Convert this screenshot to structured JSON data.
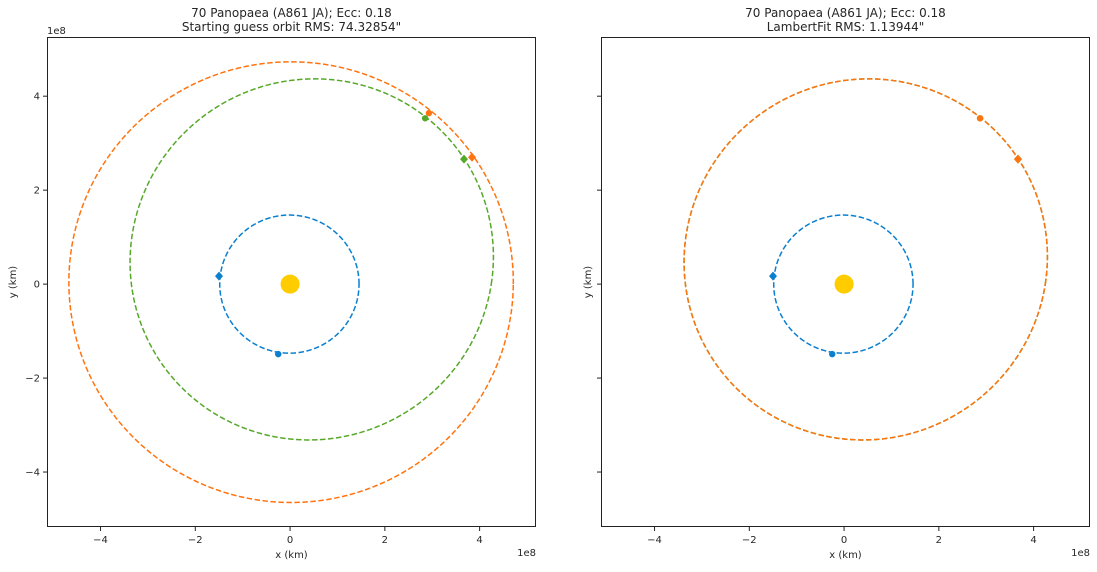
{
  "chart_data": [
    {
      "type": "line",
      "title": [
        "70 Panopaea (A861 JA); Ecc: 0.18",
        "Starting guess orbit RMS: 74.32854\""
      ],
      "xlabel": "x (km)",
      "ylabel": "y (km)",
      "offset_label": "1e8",
      "show_yticklabels": true,
      "xlim": [
        -5.13,
        5.19
      ],
      "ylim": [
        -5.17,
        5.26
      ],
      "xticks": [
        -4,
        -2,
        0,
        2,
        4
      ],
      "yticks": [
        -4,
        -2,
        0,
        2,
        4
      ],
      "tick_labels": [
        "−4",
        "−2",
        "0",
        "2",
        "4"
      ],
      "sun": {
        "x": 0,
        "y": 0,
        "color": "#ffcc00"
      },
      "orbits": [
        {
          "color": "#0a7fd0",
          "a": 1.47,
          "e": 0.01,
          "omega_deg": 0
        },
        {
          "color": "#56a829",
          "a": 3.87,
          "e": 0.18,
          "omega_deg": 229
        },
        {
          "color": "#ff7410",
          "a": 4.69,
          "e": 0.01,
          "omega_deg": 243
        }
      ],
      "points": [
        {
          "color": "#0a7fd0",
          "x": -1.5,
          "y": 0.17,
          "shape": "diamond"
        },
        {
          "color": "#0a7fd0",
          "x": -0.25,
          "y": -1.49,
          "shape": "circle"
        },
        {
          "color": "#56a829",
          "x": 2.85,
          "y": 3.53,
          "shape": "circle"
        },
        {
          "color": "#56a829",
          "x": 3.67,
          "y": 2.66,
          "shape": "diamond"
        },
        {
          "color": "#ff7410",
          "x": 2.93,
          "y": 3.64,
          "shape": "circle"
        },
        {
          "color": "#ff7410",
          "x": 3.84,
          "y": 2.7,
          "shape": "diamond"
        }
      ]
    },
    {
      "type": "line",
      "title": [
        "70 Panopaea (A861 JA); Ecc: 0.18",
        "LambertFit RMS: 1.13944\""
      ],
      "xlabel": "x (km)",
      "ylabel": "y (km)",
      "offset_label": "1e8",
      "show_yticklabels": false,
      "xlim": [
        -5.13,
        5.19
      ],
      "ylim": [
        -5.17,
        5.26
      ],
      "xticks": [
        -4,
        -2,
        0,
        2,
        4
      ],
      "yticks": [
        -4,
        -2,
        0,
        2,
        4
      ],
      "tick_labels": [
        "−4",
        "−2",
        "0",
        "2",
        "4"
      ],
      "sun": {
        "x": 0,
        "y": 0,
        "color": "#ffcc00"
      },
      "orbits": [
        {
          "color": "#0a7fd0",
          "a": 1.47,
          "e": 0.01,
          "omega_deg": 0
        },
        {
          "color": "#56a829",
          "a": 3.87,
          "e": 0.18,
          "omega_deg": 229
        },
        {
          "color": "#ff7410",
          "a": 3.87,
          "e": 0.18,
          "omega_deg": 229
        }
      ],
      "points": [
        {
          "color": "#0a7fd0",
          "x": -1.5,
          "y": 0.17,
          "shape": "diamond"
        },
        {
          "color": "#0a7fd0",
          "x": -0.25,
          "y": -1.49,
          "shape": "circle"
        },
        {
          "color": "#56a829",
          "x": 2.87,
          "y": 3.53,
          "shape": "circle"
        },
        {
          "color": "#56a829",
          "x": 3.67,
          "y": 2.66,
          "shape": "diamond"
        },
        {
          "color": "#ff7410",
          "x": 2.87,
          "y": 3.53,
          "shape": "circle"
        },
        {
          "color": "#ff7410",
          "x": 3.67,
          "y": 2.66,
          "shape": "diamond"
        }
      ]
    }
  ]
}
